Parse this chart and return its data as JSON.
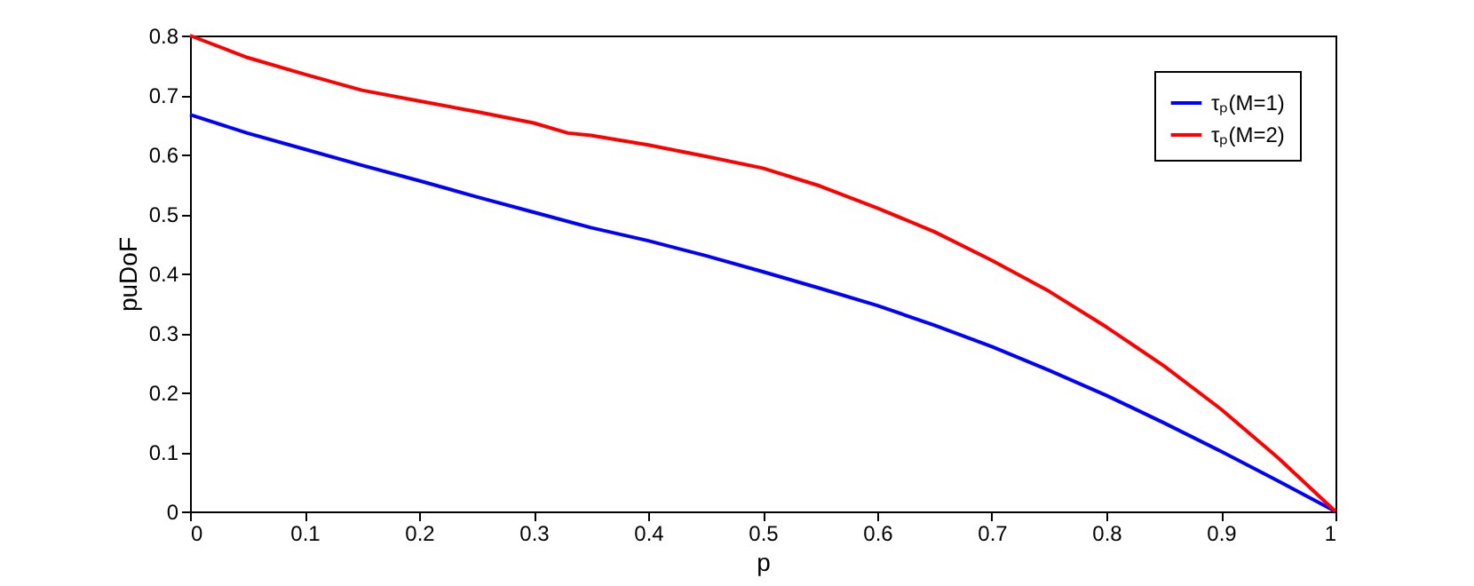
{
  "chart_data": {
    "type": "line",
    "xlabel": "p",
    "ylabel": "puDoF",
    "xlim": [
      0,
      1
    ],
    "ylim": [
      0,
      0.8
    ],
    "xticks": [
      0,
      0.1,
      0.2,
      0.3,
      0.4,
      0.5,
      0.6,
      0.7,
      0.8,
      0.9,
      1
    ],
    "yticks": [
      0,
      0.1,
      0.2,
      0.3,
      0.4,
      0.5,
      0.6,
      0.7,
      0.8
    ],
    "grid": false,
    "legend": "top right",
    "line_style": "solid",
    "marker": "none",
    "series": [
      {
        "name": "τₚ(M=1)",
        "color": "#0000ff",
        "x": [
          0,
          0.05,
          0.1,
          0.15,
          0.2,
          0.25,
          0.3,
          0.35,
          0.4,
          0.45,
          0.5,
          0.55,
          0.6,
          0.65,
          0.7,
          0.75,
          0.8,
          0.85,
          0.9,
          0.95,
          1
        ],
        "values": [
          0.667,
          0.636,
          0.609,
          0.582,
          0.556,
          0.529,
          0.503,
          0.477,
          0.455,
          0.43,
          0.403,
          0.375,
          0.346,
          0.313,
          0.277,
          0.237,
          0.195,
          0.149,
          0.101,
          0.051,
          0
        ]
      },
      {
        "name": "τₚ(M=2)",
        "color": "#ff0000",
        "x": [
          0,
          0.05,
          0.1,
          0.15,
          0.2,
          0.25,
          0.3,
          0.33,
          0.35,
          0.4,
          0.45,
          0.5,
          0.55,
          0.6,
          0.65,
          0.7,
          0.75,
          0.8,
          0.85,
          0.9,
          0.95,
          1
        ],
        "values": [
          0.8,
          0.763,
          0.735,
          0.708,
          0.69,
          0.672,
          0.653,
          0.636,
          0.632,
          0.616,
          0.597,
          0.577,
          0.547,
          0.51,
          0.47,
          0.422,
          0.37,
          0.31,
          0.245,
          0.172,
          0.09,
          0
        ]
      }
    ]
  }
}
